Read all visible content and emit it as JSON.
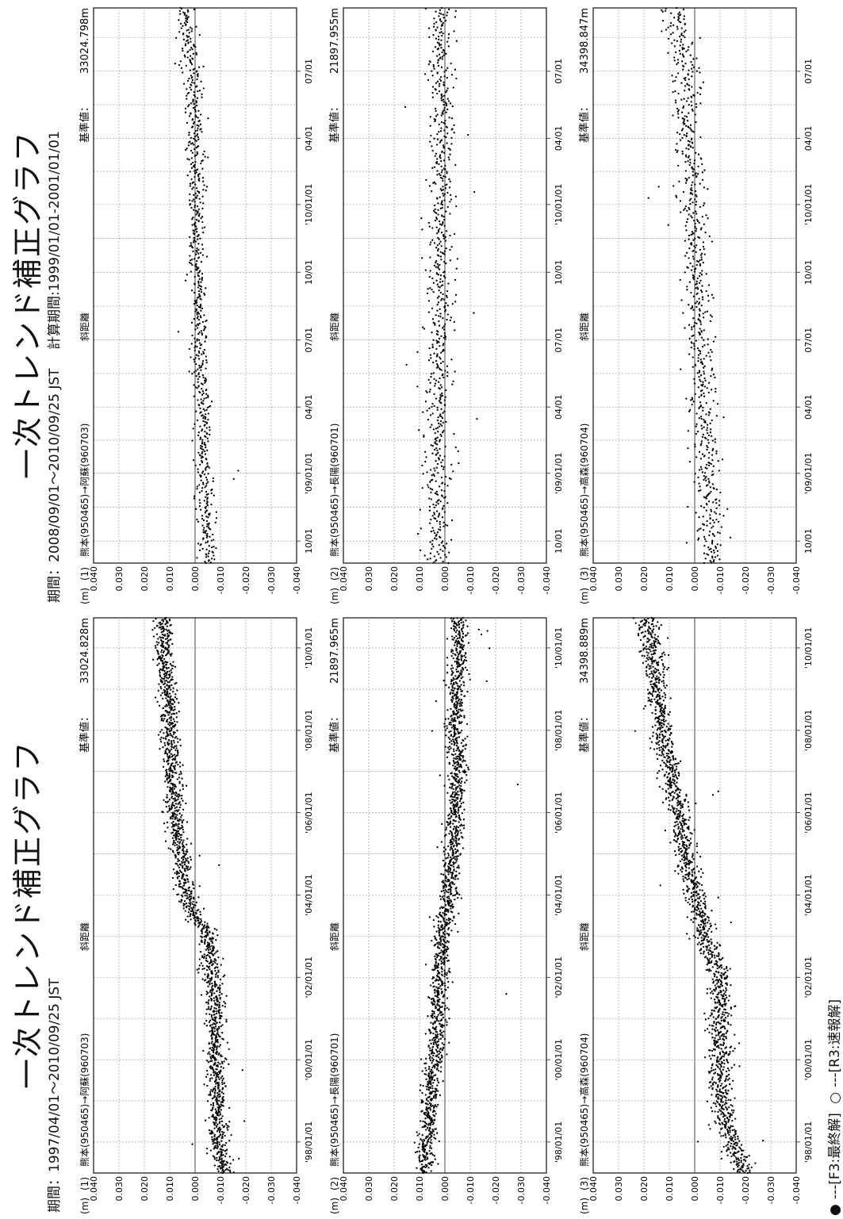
{
  "left_panel": {
    "title": "一次トレンド補正グラフ",
    "period_label": "期間：",
    "period": "1997/04/01～2010/09/25 JST",
    "calc_period": ""
  },
  "right_panel": {
    "title": "一次トレンド補正グラフ",
    "period_label": "期間：",
    "period": "2008/09/01～2010/09/25 JST",
    "calc_period": "計算期間:1999/01/01-2001/01/01"
  },
  "legend": {
    "final_marker": "●",
    "final_label": "---[F3:最終解]",
    "rapid_marker": "○",
    "rapid_label": "---[R3:速報解]"
  },
  "chart_data": [
    {
      "type": "scatter",
      "panel": "left",
      "unit": "(m)",
      "number": "(1)",
      "station_pair": "熊本(950465)→阿蘇(960703)",
      "component": "斜距離",
      "reference_label": "基準値：",
      "reference_value": "33024.828m",
      "ylim": [
        -0.04,
        0.04
      ],
      "y_ticks": [
        "0.040",
        "0.030",
        "0.020",
        "0.010",
        "0.000",
        "-0.010",
        "-0.020",
        "-0.030",
        "-0.040"
      ],
      "xlim": [
        "1997-04-01",
        "2010-09-25"
      ],
      "x_ticks": [
        {
          "date": "1998-01-01",
          "label": "'98/01/01"
        },
        {
          "date": "2000-01-01",
          "label": "'00/01/01"
        },
        {
          "date": "2002-01-01",
          "label": "'02/01/01"
        },
        {
          "date": "2004-01-01",
          "label": "'04/01/01"
        },
        {
          "date": "2006-01-01",
          "label": "'06/01/01"
        },
        {
          "date": "2008-01-01",
          "label": "'08/01/01"
        },
        {
          "date": "2010-01-01",
          "label": "'10/01/01"
        }
      ],
      "trend": [
        [
          "1997-04-01",
          -0.011
        ],
        [
          "1998-01-01",
          -0.009
        ],
        [
          "1999-01-01",
          -0.009
        ],
        [
          "2000-01-01",
          -0.008
        ],
        [
          "2001-01-01",
          -0.008
        ],
        [
          "2002-01-01",
          -0.007
        ],
        [
          "2002-12-01",
          -0.005
        ],
        [
          "2003-04-01",
          -0.004
        ],
        [
          "2003-07-01",
          0.001
        ],
        [
          "2004-01-01",
          0.003
        ],
        [
          "2005-01-01",
          0.006
        ],
        [
          "2006-01-01",
          0.008
        ],
        [
          "2007-01-01",
          0.009
        ],
        [
          "2008-01-01",
          0.01
        ],
        [
          "2009-01-01",
          0.011
        ],
        [
          "2010-09-25",
          0.013
        ]
      ],
      "scatter_sd": 0.0018
    },
    {
      "type": "scatter",
      "panel": "left",
      "unit": "(m)",
      "number": "(2)",
      "station_pair": "熊本(950465)→長陽(960701)",
      "component": "斜距離",
      "reference_label": "基準値：",
      "reference_value": "21897.965m",
      "ylim": [
        -0.04,
        0.04
      ],
      "y_ticks": [
        "0.040",
        "0.030",
        "0.020",
        "0.010",
        "0.000",
        "-0.010",
        "-0.020",
        "-0.030",
        "-0.040"
      ],
      "xlim": [
        "1997-04-01",
        "2010-09-25"
      ],
      "x_ticks": [
        {
          "date": "1998-01-01",
          "label": "'98/01/01"
        },
        {
          "date": "2000-01-01",
          "label": "'00/01/01"
        },
        {
          "date": "2002-01-01",
          "label": "'02/01/01"
        },
        {
          "date": "2004-01-01",
          "label": "'04/01/01"
        },
        {
          "date": "2006-01-01",
          "label": "'06/01/01"
        },
        {
          "date": "2008-01-01",
          "label": "'08/01/01"
        },
        {
          "date": "2010-01-01",
          "label": "'10/01/01"
        }
      ],
      "trend": [
        [
          "1997-04-01",
          0.008
        ],
        [
          "1998-01-01",
          0.007
        ],
        [
          "1999-01-01",
          0.006
        ],
        [
          "2000-01-01",
          0.004
        ],
        [
          "2001-01-01",
          0.003
        ],
        [
          "2002-01-01",
          0.002
        ],
        [
          "2003-01-01",
          0.001
        ],
        [
          "2004-01-01",
          -0.002
        ],
        [
          "2005-01-01",
          -0.003
        ],
        [
          "2006-01-01",
          -0.004
        ],
        [
          "2007-01-01",
          -0.005
        ],
        [
          "2008-01-01",
          -0.004
        ],
        [
          "2009-01-01",
          -0.005
        ],
        [
          "2010-09-25",
          -0.006
        ]
      ],
      "scatter_sd": 0.0018
    },
    {
      "type": "scatter",
      "panel": "left",
      "unit": "(m)",
      "number": "(3)",
      "station_pair": "熊本(950465)→高森(960704)",
      "component": "斜距離",
      "reference_label": "基準値：",
      "reference_value": "34398.889m",
      "ylim": [
        -0.04,
        0.04
      ],
      "y_ticks": [
        "0.040",
        "0.030",
        "0.020",
        "0.010",
        "0.000",
        "-0.010",
        "-0.020",
        "-0.030",
        "-0.040"
      ],
      "xlim": [
        "1997-04-01",
        "2010-09-25"
      ],
      "x_ticks": [
        {
          "date": "1998-01-01",
          "label": "'98/01/01"
        },
        {
          "date": "2000-01-01",
          "label": "'00/01/01"
        },
        {
          "date": "2002-01-01",
          "label": "'02/01/01"
        },
        {
          "date": "2004-01-01",
          "label": "'04/01/01"
        },
        {
          "date": "2006-01-01",
          "label": "'06/01/01"
        },
        {
          "date": "2008-01-01",
          "label": "'08/01/01"
        },
        {
          "date": "2010-01-01",
          "label": "'10/01/01"
        }
      ],
      "trend": [
        [
          "1997-04-01",
          -0.02
        ],
        [
          "1997-10-01",
          -0.016
        ],
        [
          "1998-06-01",
          -0.012
        ],
        [
          "1999-01-01",
          -0.011
        ],
        [
          "2000-01-01",
          -0.01
        ],
        [
          "2001-01-01",
          -0.01
        ],
        [
          "2002-01-01",
          -0.01
        ],
        [
          "2002-06-01",
          -0.008
        ],
        [
          "2003-01-01",
          -0.004
        ],
        [
          "2003-09-01",
          -0.002
        ],
        [
          "2004-01-01",
          0.0
        ],
        [
          "2005-01-01",
          0.003
        ],
        [
          "2006-01-01",
          0.006
        ],
        [
          "2007-01-01",
          0.01
        ],
        [
          "2008-01-01",
          0.013
        ],
        [
          "2009-01-01",
          0.015
        ],
        [
          "2010-09-25",
          0.019
        ]
      ],
      "scatter_sd": 0.0022
    },
    {
      "type": "scatter",
      "panel": "right",
      "unit": "(m)",
      "number": "(1)",
      "station_pair": "熊本(950465)→阿蘇(960703)",
      "component": "斜距離",
      "reference_label": "基準値：",
      "reference_value": "33024.798m",
      "ylim": [
        -0.04,
        0.04
      ],
      "y_ticks": [
        "0.040",
        "0.030",
        "0.020",
        "0.010",
        "0.000",
        "-0.010",
        "-0.020",
        "-0.030",
        "-0.040"
      ],
      "xlim": [
        "2008-09-01",
        "2010-09-25"
      ],
      "x_ticks": [
        {
          "date": "2008-10-01",
          "label": "10/01"
        },
        {
          "date": "2009-01-01",
          "label": "'09/01/01"
        },
        {
          "date": "2009-04-01",
          "label": "04/01"
        },
        {
          "date": "2009-07-01",
          "label": "07/01"
        },
        {
          "date": "2009-10-01",
          "label": "10/01"
        },
        {
          "date": "2010-01-01",
          "label": "'10/01/01"
        },
        {
          "date": "2010-04-01",
          "label": "04/01"
        },
        {
          "date": "2010-07-01",
          "label": "07/01"
        }
      ],
      "trend": [
        [
          "2008-09-01",
          -0.005
        ],
        [
          "2009-03-01",
          -0.003
        ],
        [
          "2009-09-01",
          -0.001
        ],
        [
          "2010-03-01",
          0.0
        ],
        [
          "2010-07-01",
          0.001
        ],
        [
          "2010-09-25",
          0.004
        ]
      ],
      "scatter_sd": 0.0017
    },
    {
      "type": "scatter",
      "panel": "right",
      "unit": "(m)",
      "number": "(2)",
      "station_pair": "熊本(950465)→長陽(960701)",
      "component": "斜距離",
      "reference_label": "基準値：",
      "reference_value": "21897.955m",
      "ylim": [
        -0.04,
        0.04
      ],
      "y_ticks": [
        "0.040",
        "0.030",
        "0.020",
        "0.010",
        "0.000",
        "-0.010",
        "-0.020",
        "-0.030",
        "-0.040"
      ],
      "xlim": [
        "2008-09-01",
        "2010-09-25"
      ],
      "x_ticks": [
        {
          "date": "2008-10-01",
          "label": "10/01"
        },
        {
          "date": "2009-01-01",
          "label": "'09/01/01"
        },
        {
          "date": "2009-04-01",
          "label": "04/01"
        },
        {
          "date": "2009-07-01",
          "label": "07/01"
        },
        {
          "date": "2009-10-01",
          "label": "10/01"
        },
        {
          "date": "2010-01-01",
          "label": "'10/01/01"
        },
        {
          "date": "2010-04-01",
          "label": "04/01"
        },
        {
          "date": "2010-07-01",
          "label": "07/01"
        }
      ],
      "trend": [
        [
          "2008-09-01",
          0.003
        ],
        [
          "2009-03-01",
          0.003
        ],
        [
          "2009-09-01",
          0.002
        ],
        [
          "2010-03-01",
          0.001
        ],
        [
          "2010-09-25",
          0.001
        ]
      ],
      "scatter_sd": 0.0025
    },
    {
      "type": "scatter",
      "panel": "right",
      "unit": "(m)",
      "number": "(3)",
      "station_pair": "熊本(950465)→高森(960704)",
      "component": "斜距離",
      "reference_label": "基準値：",
      "reference_value": "34398.847m",
      "ylim": [
        -0.04,
        0.04
      ],
      "y_ticks": [
        "0.040",
        "0.030",
        "0.020",
        "0.010",
        "0.000",
        "-0.010",
        "-0.020",
        "-0.030",
        "-0.040"
      ],
      "xlim": [
        "2008-09-01",
        "2010-09-25"
      ],
      "x_ticks": [
        {
          "date": "2008-10-01",
          "label": "10/01"
        },
        {
          "date": "2009-01-01",
          "label": "'09/01/01"
        },
        {
          "date": "2009-04-01",
          "label": "04/01"
        },
        {
          "date": "2009-07-01",
          "label": "07/01"
        },
        {
          "date": "2009-10-01",
          "label": "10/01"
        },
        {
          "date": "2010-01-01",
          "label": "'10/01/01"
        },
        {
          "date": "2010-04-01",
          "label": "04/01"
        },
        {
          "date": "2010-07-01",
          "label": "07/01"
        }
      ],
      "trend": [
        [
          "2008-09-01",
          -0.007
        ],
        [
          "2009-03-01",
          -0.004
        ],
        [
          "2009-09-01",
          -0.001
        ],
        [
          "2010-03-01",
          0.002
        ],
        [
          "2010-07-01",
          0.004
        ],
        [
          "2010-09-25",
          0.008
        ]
      ],
      "scatter_sd": 0.0028
    }
  ]
}
